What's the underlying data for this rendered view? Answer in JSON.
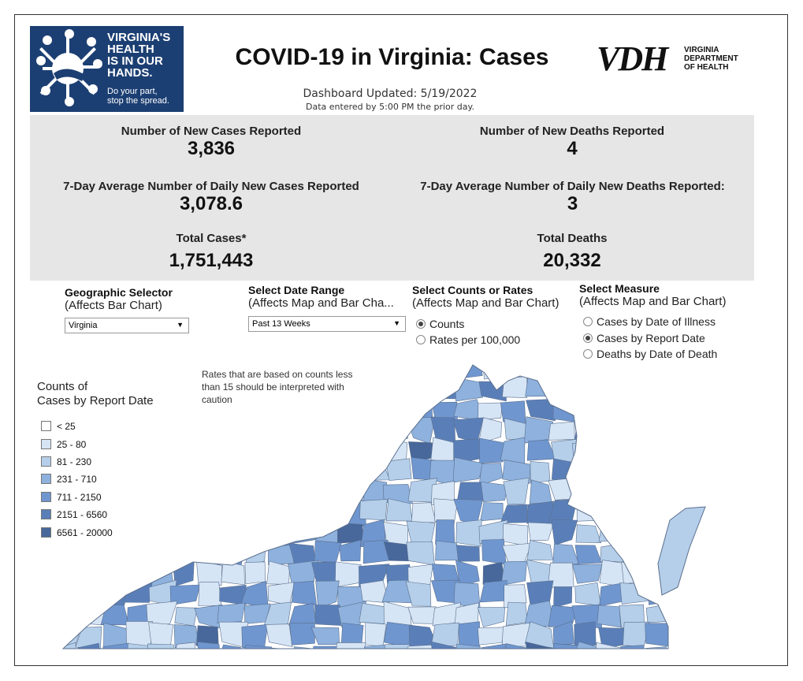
{
  "header": {
    "logo_lines": [
      "VIRGINIA'S",
      "HEALTH",
      "IS IN OUR",
      "HANDS."
    ],
    "logo_tagline": [
      "Do your part,",
      "stop the spread."
    ],
    "title": "COVID-19 in Virginia: Cases",
    "vdh_mark": "VDH",
    "vdh_words": [
      "VIRGINIA",
      "DEPARTMENT",
      "OF HEALTH"
    ],
    "updated": "Dashboard Updated: 5/19/2022",
    "entered_note": "Data entered by 5:00 PM the prior day."
  },
  "stats": {
    "new_cases_label": "Number of New Cases Reported",
    "new_cases_value": "3,836",
    "new_deaths_label": "Number of New Deaths Reported",
    "new_deaths_value": "4",
    "avg_cases_label": "7-Day Average Number of Daily New Cases Reported",
    "avg_cases_value": "3,078.6",
    "avg_deaths_label": "7-Day Average Number of Daily New Deaths Reported:",
    "avg_deaths_value": "3",
    "total_cases_label": "Total Cases*",
    "total_cases_value": "1,751,443",
    "total_deaths_label": "Total Deaths",
    "total_deaths_value": "20,332"
  },
  "controls": {
    "geo": {
      "title": "Geographic Selector",
      "subtitle": "(Affects Bar Chart)",
      "selected": "Virginia"
    },
    "date_range": {
      "title": "Select Date Range",
      "subtitle": "(Affects Map and Bar Cha...",
      "selected": "Past 13 Weeks"
    },
    "counts_rates": {
      "title": "Select Counts or Rates",
      "subtitle": "(Affects Map and Bar Chart)",
      "options": [
        "Counts",
        "Rates per 100,000"
      ],
      "selected_index": 0
    },
    "measure": {
      "title": "Select Measure",
      "subtitle": "(Affects Map and Bar Chart)",
      "options": [
        "Cases by Date of Illness",
        "Cases by Report Date",
        "Deaths by Date of Death"
      ],
      "selected_index": 1
    }
  },
  "legend": {
    "title_line1": "Counts of",
    "title_line2": "Cases by Report Date",
    "items": [
      "< 25",
      "25 - 80",
      "81 - 230",
      "231 - 710",
      "711 - 2150",
      "2151 - 6560",
      "6561 - 20000"
    ],
    "colors": [
      "#ffffff",
      "#d6e5f5",
      "#b5cfea",
      "#8eb1dd",
      "#6f96cf",
      "#5a7fb8",
      "#48679a"
    ]
  },
  "map_note": "Rates that are based on counts less than 15 should be interpreted with caution",
  "colors": {
    "logo_bg": "#1c3f73",
    "panel_bg": "#e6e6e6"
  }
}
